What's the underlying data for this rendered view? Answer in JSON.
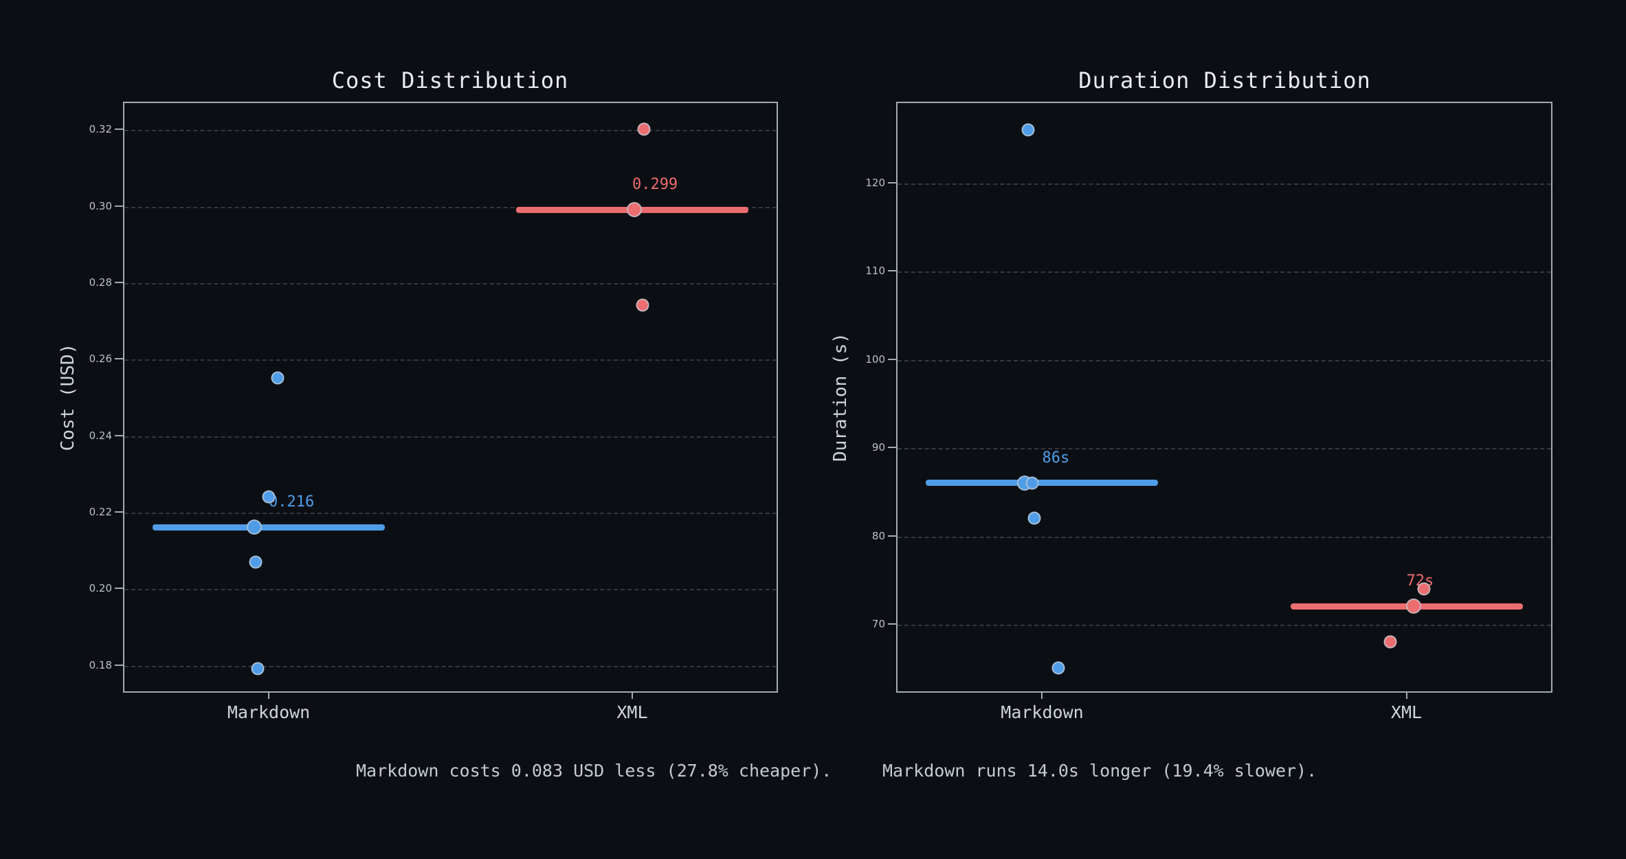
{
  "figure": {
    "background": "#0b0f14",
    "spine_color": "#a3abb3",
    "grid_style": "horizontal-dashed"
  },
  "chart_data": [
    {
      "type": "scatter",
      "title": "Cost Distribution",
      "ylabel": "Cost (USD)",
      "xlabel": "",
      "categories": [
        "Markdown",
        "XML"
      ],
      "ylim": [
        0.1728,
        0.3272
      ],
      "ytick_values": [
        0.32,
        0.3,
        0.28,
        0.26,
        0.24,
        0.22,
        0.2,
        0.18
      ],
      "ytick_labels": [
        "0.32",
        "0.30",
        "0.28",
        "0.26",
        "0.24",
        "0.22",
        "0.20",
        "0.18"
      ],
      "grid": "on",
      "legend": "none",
      "series": [
        {
          "name": "Markdown",
          "color": "#4f9de8",
          "median": 0.216,
          "median_label": "0.216",
          "values": [
            0.255,
            0.224,
            0.216,
            0.207,
            0.179
          ],
          "points": [
            {
              "v": 0.255,
              "dx": 13
            },
            {
              "v": 0.224,
              "dx": 0
            },
            {
              "v": 0.216,
              "dx": -21,
              "md": true
            },
            {
              "v": 0.207,
              "dx": -19
            },
            {
              "v": 0.179,
              "dx": -16
            }
          ]
        },
        {
          "name": "XML",
          "color": "#ec6d6f",
          "median": 0.299,
          "median_label": "0.299",
          "values": [
            0.32,
            0.299,
            0.274
          ],
          "points": [
            {
              "v": 0.32,
              "dx": 17
            },
            {
              "v": 0.299,
              "dx": 3,
              "md": true
            },
            {
              "v": 0.274,
              "dx": 15
            }
          ]
        }
      ]
    },
    {
      "type": "scatter",
      "title": "Duration Distribution",
      "ylabel": "Duration (s)",
      "xlabel": "",
      "categories": [
        "Markdown",
        "XML"
      ],
      "ylim": [
        62.2,
        129.2
      ],
      "ytick_values": [
        120,
        110,
        100,
        90,
        80,
        70
      ],
      "ytick_labels": [
        "120",
        "110",
        "100",
        "90",
        "80",
        "70"
      ],
      "grid": "on",
      "legend": "none",
      "series": [
        {
          "name": "Markdown",
          "color": "#4f9de8",
          "median": 86,
          "median_label": "86s",
          "values": [
            126,
            86,
            86,
            82,
            65
          ],
          "points": [
            {
              "v": 126,
              "dx": -20
            },
            {
              "v": 86,
              "dx": -25,
              "md": true
            },
            {
              "v": 86,
              "dx": -14
            },
            {
              "v": 82,
              "dx": -11
            },
            {
              "v": 65,
              "dx": 24
            }
          ]
        },
        {
          "name": "XML",
          "color": "#ec6d6f",
          "median": 72,
          "median_label": "72s",
          "values": [
            74,
            72,
            68
          ],
          "points": [
            {
              "v": 74,
              "dx": 25
            },
            {
              "v": 72,
              "dx": 10,
              "md": true
            },
            {
              "v": 68,
              "dx": -24
            }
          ]
        }
      ]
    }
  ],
  "footer": {
    "cost_summary": "Markdown costs 0.083 USD less (27.8% cheaper).",
    "duration_summary": "Markdown runs 14.0s longer (19.4% slower)."
  }
}
